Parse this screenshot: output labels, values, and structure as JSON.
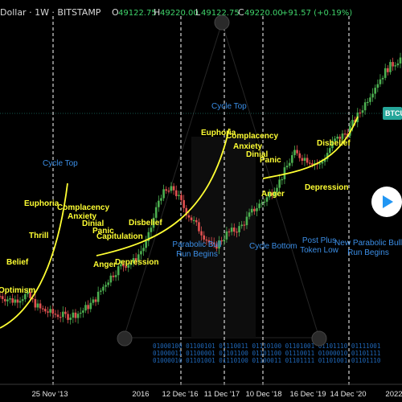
{
  "header": {
    "symbol_text": "Dollar · 1W · BITSTAMP",
    "o_label": "O",
    "o_value": "49122.75",
    "h_label": "H",
    "h_value": "49220.00",
    "l_label": "L",
    "l_value": "49122.75",
    "c_label": "C",
    "c_value": "49220.00",
    "change": "+91.57 (+0.19%)"
  },
  "price_tag": "BTCU",
  "colors": {
    "background": "#000000",
    "candle_up": "#4caf50",
    "candle_down": "#e05050",
    "curve": "#ffff33",
    "cycle_text": "#3b8ee6",
    "binary_text": "#1f67b8",
    "price_tag": "#26a69a",
    "play_button": "#2196f3"
  },
  "play_icon": "play-icon",
  "chart_data": {
    "type": "line",
    "title": "",
    "xlabel": "",
    "ylabel": "",
    "x_ticks": [
      "25 Nov '13",
      "2016",
      "12 Dec '16",
      "11 Dec '17",
      "10 Dec '18",
      "16 Dec '19",
      "14 Dec '20",
      "2022"
    ],
    "grid": false,
    "series": [
      {
        "values": [
          70,
          62,
          72,
          48,
          40,
          36,
          42,
          60,
          95,
          120,
          128,
          160,
          240,
          250,
          210,
          180,
          150,
          175,
          185,
          215,
          235,
          265,
          310,
          300,
          290,
          330,
          345,
          380,
          420,
          452,
          470
        ]
      }
    ],
    "emotion_labels_cycle1": [
      "Optimism",
      "Belief",
      "Thrill",
      "Euphoria",
      "Complacency",
      "Anxiety",
      "Dinial",
      "Panic",
      "Capitulation",
      "Anger",
      "Depression",
      "Disbelief"
    ],
    "emotion_labels_cycle2": [
      "Euphoria",
      "Complacency",
      "Anxiety",
      "Dinial",
      "Panic",
      "Anger",
      "Depression",
      "Disbelief"
    ],
    "cycle_labels": {
      "cycle_top_1": "Cycle Top",
      "cycle_top_2": "Cycle Top",
      "parabolic_1": "Parabolic Bull Run Begins",
      "cycle_bottom": "Cycle Bottom",
      "post_plus": "Post Plus Token Low",
      "parabolic_2": "New Parabolic Bull Run Begins"
    },
    "binary_lines": [
      "01000100 01100101 01110011 01110100 01101001 01101110 01111001",
      "01000011 01100001 01101100 01101100 01110011 01000010 01101111",
      "01000010 01101001 01110100 01100011 01101111 01101001 01101110"
    ]
  }
}
